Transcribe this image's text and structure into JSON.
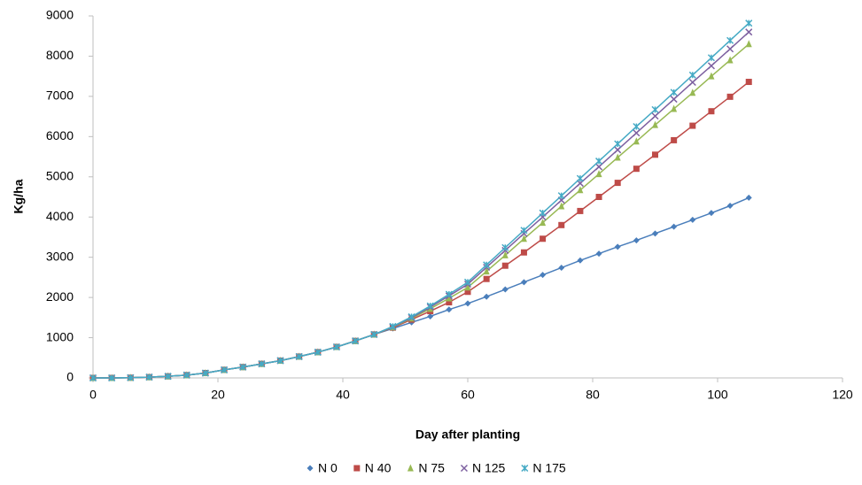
{
  "chart_data": {
    "type": "line",
    "x_label": "Day after planting",
    "y_label": "Kg/ha",
    "x": [
      0,
      3,
      6,
      9,
      12,
      15,
      18,
      21,
      24,
      27,
      30,
      33,
      36,
      39,
      42,
      45,
      48,
      51,
      54,
      57,
      60,
      63,
      66,
      69,
      72,
      75,
      78,
      81,
      84,
      87,
      90,
      93,
      96,
      99,
      102,
      105
    ],
    "series": [
      {
        "name": "N 0",
        "color": "#4a7ebb",
        "marker": "diamond",
        "values": [
          0,
          0,
          5,
          20,
          40,
          70,
          120,
          200,
          270,
          350,
          430,
          530,
          640,
          770,
          920,
          1080,
          1230,
          1380,
          1530,
          1700,
          1850,
          2020,
          2200,
          2380,
          2560,
          2740,
          2920,
          3090,
          3260,
          3420,
          3590,
          3760,
          3930,
          4100,
          4280,
          4480
        ]
      },
      {
        "name": "N 40",
        "color": "#be4b48",
        "marker": "square",
        "values": [
          0,
          0,
          5,
          20,
          40,
          70,
          120,
          200,
          270,
          350,
          430,
          530,
          640,
          770,
          920,
          1080,
          1250,
          1450,
          1660,
          1880,
          2140,
          2460,
          2790,
          3120,
          3460,
          3800,
          4150,
          4500,
          4850,
          5200,
          5550,
          5910,
          6270,
          6630,
          6990,
          7360
        ]
      },
      {
        "name": "N 75",
        "color": "#98b954",
        "marker": "triangle",
        "values": [
          0,
          0,
          5,
          20,
          40,
          70,
          120,
          200,
          270,
          350,
          430,
          530,
          640,
          770,
          920,
          1080,
          1260,
          1480,
          1720,
          1980,
          2250,
          2650,
          3050,
          3460,
          3860,
          4270,
          4670,
          5070,
          5480,
          5880,
          6290,
          6690,
          7090,
          7500,
          7900,
          8300
        ]
      },
      {
        "name": "N 125",
        "color": "#7d60a0",
        "marker": "x",
        "values": [
          0,
          0,
          5,
          20,
          40,
          70,
          120,
          200,
          270,
          350,
          430,
          530,
          640,
          770,
          920,
          1080,
          1270,
          1500,
          1760,
          2040,
          2330,
          2750,
          3170,
          3590,
          4000,
          4420,
          4840,
          5250,
          5670,
          6090,
          6510,
          6930,
          7350,
          7760,
          8180,
          8600
        ]
      },
      {
        "name": "N 175",
        "color": "#46aac5",
        "marker": "star",
        "values": [
          0,
          0,
          5,
          20,
          40,
          70,
          120,
          200,
          270,
          350,
          430,
          530,
          640,
          770,
          920,
          1080,
          1280,
          1520,
          1790,
          2080,
          2380,
          2810,
          3240,
          3670,
          4100,
          4530,
          4960,
          5390,
          5820,
          6250,
          6670,
          7100,
          7530,
          7960,
          8390,
          8820
        ]
      }
    ],
    "xlim": [
      0,
      120
    ],
    "xticks": [
      0,
      20,
      40,
      60,
      80,
      100,
      120
    ],
    "ylim": [
      0,
      9000
    ],
    "yticks": [
      0,
      1000,
      2000,
      3000,
      4000,
      5000,
      6000,
      7000,
      8000,
      9000
    ],
    "grid": false,
    "legend": "bottom"
  }
}
